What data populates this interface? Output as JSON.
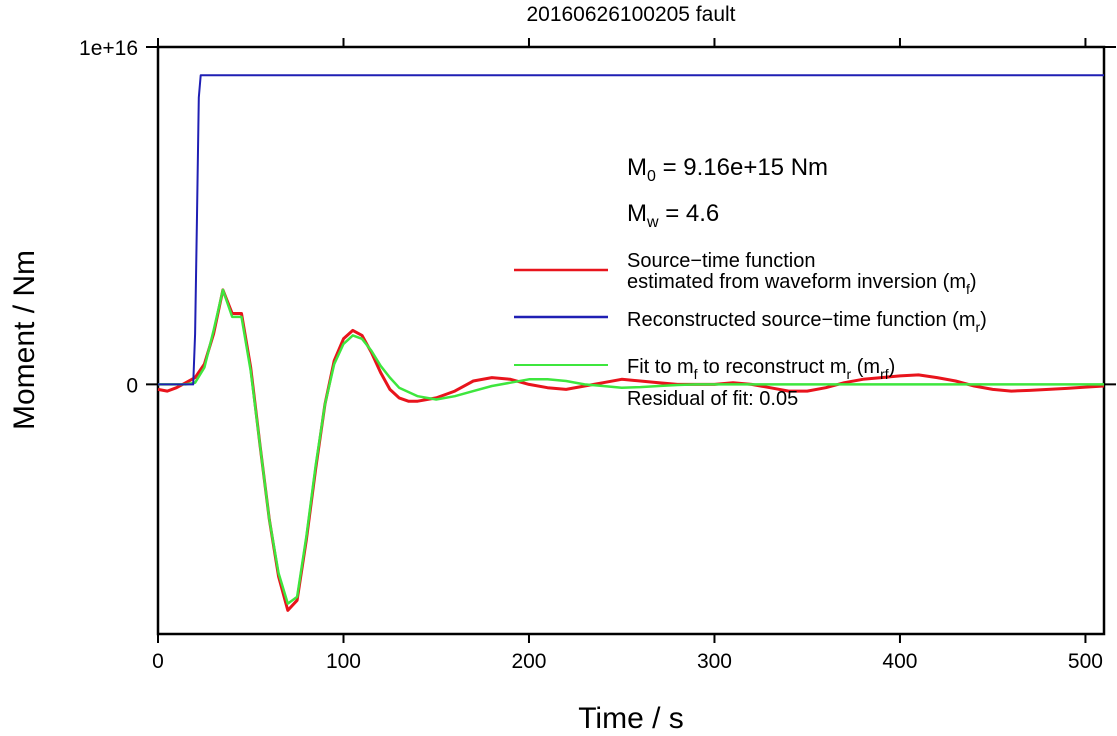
{
  "chart_data": {
    "type": "line",
    "title": "20160626100205 fault",
    "xlabel": "Time / s",
    "ylabel": "Moment / Nm",
    "xlim": [
      0,
      510
    ],
    "ylim": [
      -7400000000000000.0,
      1e+16
    ],
    "x_ticks": [
      0,
      100,
      200,
      300,
      400,
      500
    ],
    "x_tick_labels": [
      "0",
      "100",
      "200",
      "300",
      "400",
      "500"
    ],
    "y_ticks": [
      0,
      1e+16
    ],
    "y_tick_labels": [
      "0",
      "1e+16"
    ],
    "grid": false,
    "legend_position": "right-middle",
    "annotations": {
      "m0_main": "M",
      "m0_sub": "0",
      "m0_rest": " = 9.16e+15 Nm",
      "mw_main": "M",
      "mw_sub": "w",
      "mw_rest": " = 4.6",
      "residual": "Residual of fit: 0.05"
    },
    "legend": [
      {
        "lines": [
          "Source−time function",
          "estimated from waveform inversion (m",
          "f",
          ")"
        ],
        "color": "#e8141c"
      },
      {
        "lines": [
          "Reconstructed source−time function (m",
          "r",
          ")"
        ],
        "color": "#1f1fb4"
      },
      {
        "lines": [
          "Fit to m",
          "f",
          " to reconstruct m",
          "r",
          " (m",
          "rf",
          ")"
        ],
        "color": "#3ee63e"
      }
    ],
    "series": [
      {
        "name": "Source−time function estimated from waveform inversion (mf)",
        "color": "#e8141c",
        "x": [
          0,
          5,
          10,
          15,
          20,
          25,
          30,
          35,
          40,
          45,
          50,
          55,
          60,
          65,
          70,
          75,
          80,
          85,
          90,
          95,
          100,
          105,
          110,
          115,
          120,
          125,
          130,
          135,
          140,
          145,
          150,
          160,
          170,
          180,
          190,
          200,
          210,
          220,
          230,
          240,
          250,
          260,
          270,
          280,
          290,
          300,
          310,
          320,
          330,
          340,
          350,
          360,
          370,
          380,
          390,
          400,
          410,
          420,
          430,
          440,
          450,
          460,
          470,
          480,
          490,
          500,
          510
        ],
        "y": [
          -150000000000000.0,
          -200000000000000.0,
          -100000000000000.0,
          50000000000000.0,
          200000000000000.0,
          600000000000000.0,
          1500000000000000.0,
          2800000000000000.0,
          2100000000000000.0,
          2100000000000000.0,
          500000000000000.0,
          -1800000000000000.0,
          -4000000000000000.0,
          -5700000000000000.0,
          -6700000000000000.0,
          -6400000000000000.0,
          -4600000000000000.0,
          -2500000000000000.0,
          -600000000000000.0,
          700000000000000.0,
          1350000000000000.0,
          1600000000000000.0,
          1450000000000000.0,
          950000000000000.0,
          350000000000000.0,
          -150000000000000.0,
          -400000000000000.0,
          -500000000000000.0,
          -500000000000000.0,
          -450000000000000.0,
          -400000000000000.0,
          -200000000000000.0,
          100000000000000.0,
          200000000000000.0,
          150000000000000.0,
          0.0,
          -100000000000000.0,
          -150000000000000.0,
          -50000000000000.0,
          50000000000000.0,
          150000000000000.0,
          100000000000000.0,
          50000000000000.0,
          0.0,
          0.0,
          0.0,
          50000000000000.0,
          0.0,
          -100000000000000.0,
          -200000000000000.0,
          -200000000000000.0,
          -100000000000000.0,
          50000000000000.0,
          150000000000000.0,
          200000000000000.0,
          250000000000000.0,
          280000000000000.0,
          200000000000000.0,
          100000000000000.0,
          -50000000000000.0,
          -150000000000000.0,
          -200000000000000.0,
          -180000000000000.0,
          -150000000000000.0,
          -120000000000000.0,
          -80000000000000.0,
          -50000000000000.0
        ]
      },
      {
        "name": "Reconstructed source−time function (mr)",
        "color": "#1f1fb4",
        "x": [
          0,
          19,
          20,
          21,
          22,
          23,
          24,
          30,
          100,
          200,
          300,
          400,
          510
        ],
        "y": [
          0,
          0,
          1500000000000000.0,
          5000000000000000.0,
          8500000000000000.0,
          9160000000000000.0,
          9160000000000000.0,
          9160000000000000.0,
          9160000000000000.0,
          9160000000000000.0,
          9160000000000000.0,
          9160000000000000.0,
          9160000000000000.0
        ]
      },
      {
        "name": "Fit to mf to reconstruct mr (mrf)",
        "color": "#3ee63e",
        "x": [
          0,
          5,
          10,
          15,
          20,
          25,
          30,
          35,
          40,
          45,
          50,
          55,
          60,
          65,
          70,
          75,
          80,
          85,
          90,
          95,
          100,
          105,
          110,
          115,
          120,
          125,
          130,
          140,
          150,
          160,
          170,
          180,
          190,
          200,
          210,
          220,
          230,
          240,
          250,
          260,
          270,
          280,
          290,
          300,
          320,
          340,
          360,
          380,
          400,
          420,
          440,
          460,
          480,
          500,
          510
        ],
        "y": [
          0,
          0,
          0,
          0,
          50000000000000.0,
          500000000000000.0,
          1600000000000000.0,
          2800000000000000.0,
          2000000000000000.0,
          2000000000000000.0,
          400000000000000.0,
          -1800000000000000.0,
          -4000000000000000.0,
          -5600000000000000.0,
          -6500000000000000.0,
          -6300000000000000.0,
          -4500000000000000.0,
          -2400000000000000.0,
          -600000000000000.0,
          600000000000000.0,
          1200000000000000.0,
          1450000000000000.0,
          1350000000000000.0,
          1000000000000000.0,
          550000000000000.0,
          200000000000000.0,
          -100000000000000.0,
          -350000000000000.0,
          -450000000000000.0,
          -350000000000000.0,
          -200000000000000.0,
          -50000000000000.0,
          50000000000000.0,
          150000000000000.0,
          150000000000000.0,
          100000000000000.0,
          0.0,
          -50000000000000.0,
          -100000000000000.0,
          -80000000000000.0,
          -50000000000000.0,
          -20000000000000.0,
          0.0,
          0.0,
          0.0,
          0.0,
          0.0,
          0.0,
          0.0,
          0.0,
          0.0,
          0.0,
          0.0,
          0.0,
          0.0
        ]
      }
    ]
  }
}
